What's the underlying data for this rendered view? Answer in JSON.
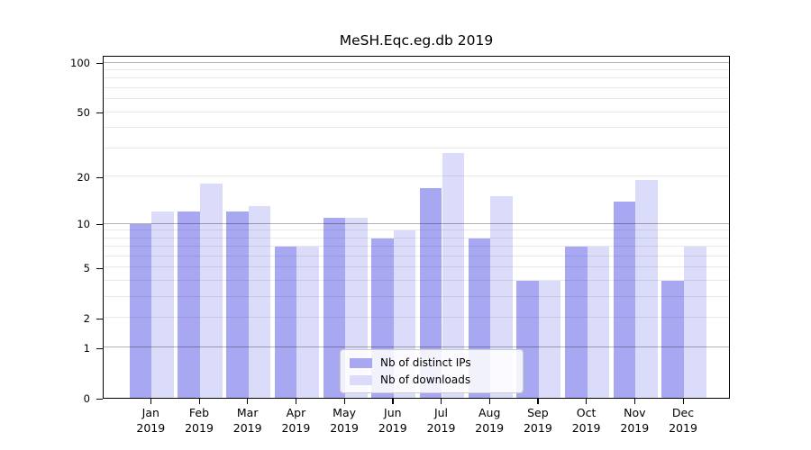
{
  "title": "MeSH.Eqc.eg.db 2019",
  "chart_data": {
    "type": "bar",
    "title": "MeSH.Eqc.eg.db 2019",
    "categories": [
      "Jan",
      "Feb",
      "Mar",
      "Apr",
      "May",
      "Jun",
      "Jul",
      "Aug",
      "Sep",
      "Oct",
      "Nov",
      "Dec"
    ],
    "category_year": "2019",
    "series": [
      {
        "name": "Nb of distinct IPs",
        "color": "#a8a8f2",
        "values": [
          10,
          12,
          12,
          7,
          11,
          8,
          17,
          8,
          4,
          7,
          14,
          4
        ]
      },
      {
        "name": "Nb of downloads",
        "color": "#dbdbfa",
        "values": [
          12,
          18,
          13,
          7,
          11,
          9,
          28,
          15,
          4,
          7,
          19,
          7
        ]
      }
    ],
    "xlabel": "",
    "ylabel": "",
    "y_scale": "log10(1+x)",
    "ylim": [
      0,
      111
    ],
    "y_ticks_labeled": [
      0,
      1,
      2,
      5,
      10,
      20,
      50,
      100
    ],
    "y_gridlines_major": [
      1,
      10,
      100
    ],
    "y_gridlines_minor": [
      2,
      3,
      4,
      5,
      6,
      7,
      8,
      9,
      20,
      30,
      40,
      50,
      60,
      70,
      80,
      90
    ],
    "grid": true,
    "legend_position": "bottom-center",
    "colors": {
      "grid_major": "rgba(0,0,0,0.30)",
      "grid_minor": "rgba(0,0,0,0.085)",
      "axis": "#000000",
      "legend_border": "#cccccc"
    }
  }
}
